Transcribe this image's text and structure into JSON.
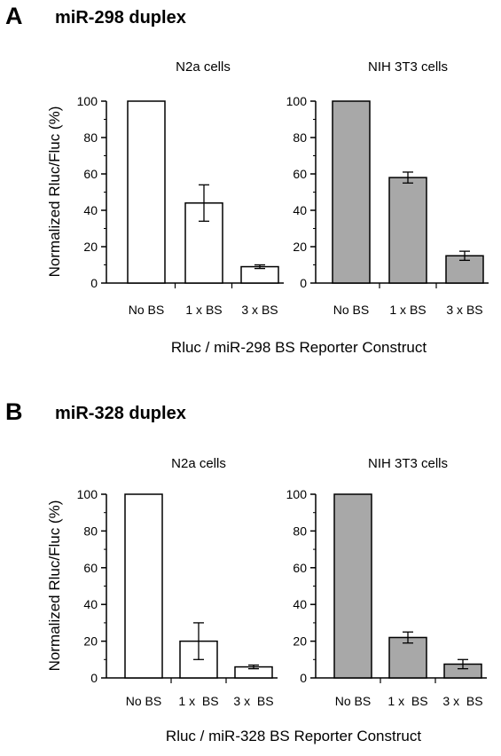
{
  "colors": {
    "white_bar": "#ffffff",
    "gray_bar": "#a8a8a8",
    "axis": "#000000"
  },
  "panels": [
    {
      "letter": "A",
      "title": "miR-298 duplex",
      "ylabel": "Normalized Rluc/Fluc (%)",
      "xlabel": "Rluc / miR-298 BS Reporter Construct"
    },
    {
      "letter": "B",
      "title": "miR-328 duplex",
      "ylabel": "Normalized Rluc/Fluc (%)",
      "xlabel": "Rluc / miR-328 BS Reporter Construct"
    }
  ],
  "chart_data": [
    {
      "panel": "A",
      "type": "bar",
      "title": "N2a cells",
      "ylim": [
        0,
        100
      ],
      "yticks": [
        "0",
        "20",
        "40",
        "60",
        "80",
        "100"
      ],
      "categories": [
        "No BS",
        "1 x BS",
        "3 x BS"
      ],
      "values": [
        100,
        44,
        9
      ],
      "errors": [
        0,
        10,
        1
      ],
      "bar_color": "white"
    },
    {
      "panel": "A",
      "type": "bar",
      "title": "NIH 3T3 cells",
      "ylim": [
        0,
        100
      ],
      "yticks": [
        "0",
        "20",
        "40",
        "60",
        "80",
        "100"
      ],
      "categories": [
        "No BS",
        "1 x BS",
        "3 x BS"
      ],
      "values": [
        100,
        58,
        15
      ],
      "errors": [
        0,
        3,
        2.5
      ],
      "bar_color": "gray"
    },
    {
      "panel": "B",
      "type": "bar",
      "title": "N2a cells",
      "ylim": [
        0,
        100
      ],
      "yticks": [
        "0",
        "20",
        "40",
        "60",
        "80",
        "100"
      ],
      "categories": [
        "No BS",
        "1 x  BS",
        "3 x  BS"
      ],
      "values": [
        100,
        20,
        6
      ],
      "errors": [
        0,
        10,
        1
      ],
      "bar_color": "white"
    },
    {
      "panel": "B",
      "type": "bar",
      "title": "NIH 3T3 cells",
      "ylim": [
        0,
        100
      ],
      "yticks": [
        "0",
        "20",
        "40",
        "60",
        "80",
        "100"
      ],
      "categories": [
        "No BS",
        "1 x  BS",
        "3 x  BS"
      ],
      "values": [
        100,
        22,
        7.5
      ],
      "errors": [
        0,
        3,
        2.5
      ],
      "bar_color": "gray"
    }
  ]
}
